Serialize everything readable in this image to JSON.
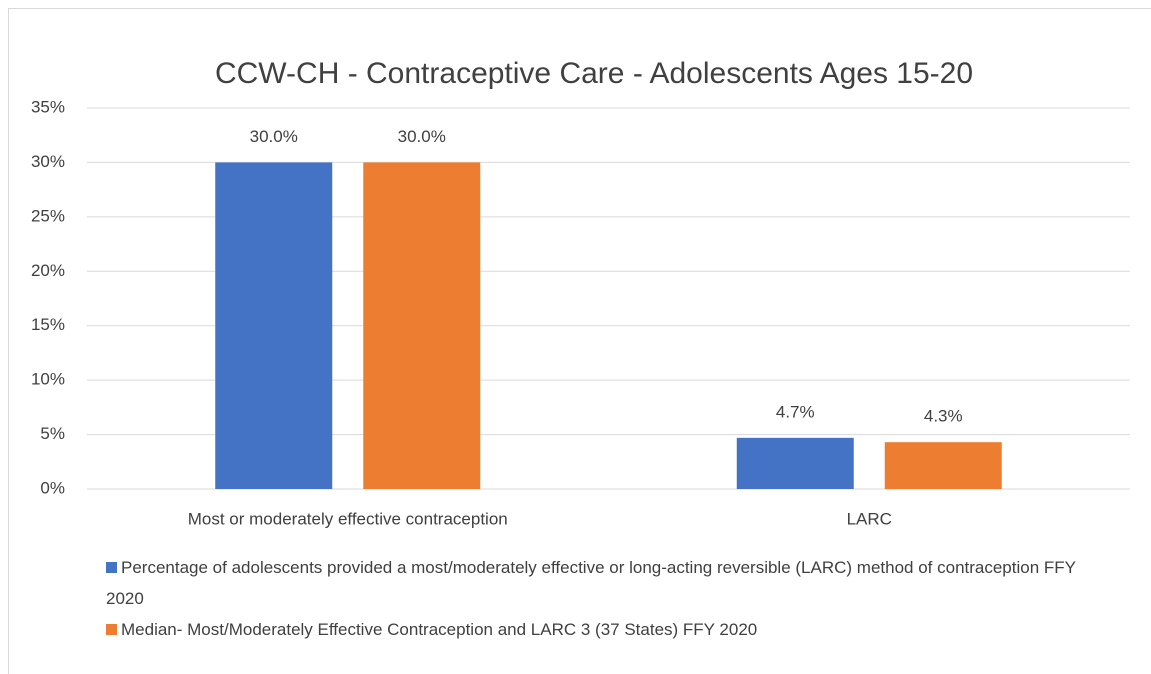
{
  "chart_data": {
    "type": "bar",
    "title": "CCW-CH - Contraceptive Care - Adolescents Ages 15-20",
    "categories": [
      "Most or moderately effective contraception",
      "LARC"
    ],
    "series": [
      {
        "name": "Percentage of adolescents provided a most/moderately effective or long-acting reversible (LARC) method of contraception FFY 2020",
        "color": "#4472c4",
        "values": [
          30.0,
          4.7
        ],
        "value_labels": [
          "30.0%",
          "4.7%"
        ]
      },
      {
        "name": "Median- Most/Moderately Effective Contraception and LARC 3 (37 States) FFY 2020",
        "color": "#ed7d31",
        "values": [
          30.0,
          4.3
        ],
        "value_labels": [
          "30.0%",
          "4.3%"
        ]
      }
    ],
    "ylim": [
      0,
      35
    ],
    "yticks": [
      {
        "value": 0,
        "label": "0%"
      },
      {
        "value": 5,
        "label": "5%"
      },
      {
        "value": 10,
        "label": "10%"
      },
      {
        "value": 15,
        "label": "15%"
      },
      {
        "value": 20,
        "label": "20%"
      },
      {
        "value": 25,
        "label": "25%"
      },
      {
        "value": 30,
        "label": "30%"
      },
      {
        "value": 35,
        "label": "35%"
      }
    ],
    "grid": true,
    "legend": "bottom"
  }
}
